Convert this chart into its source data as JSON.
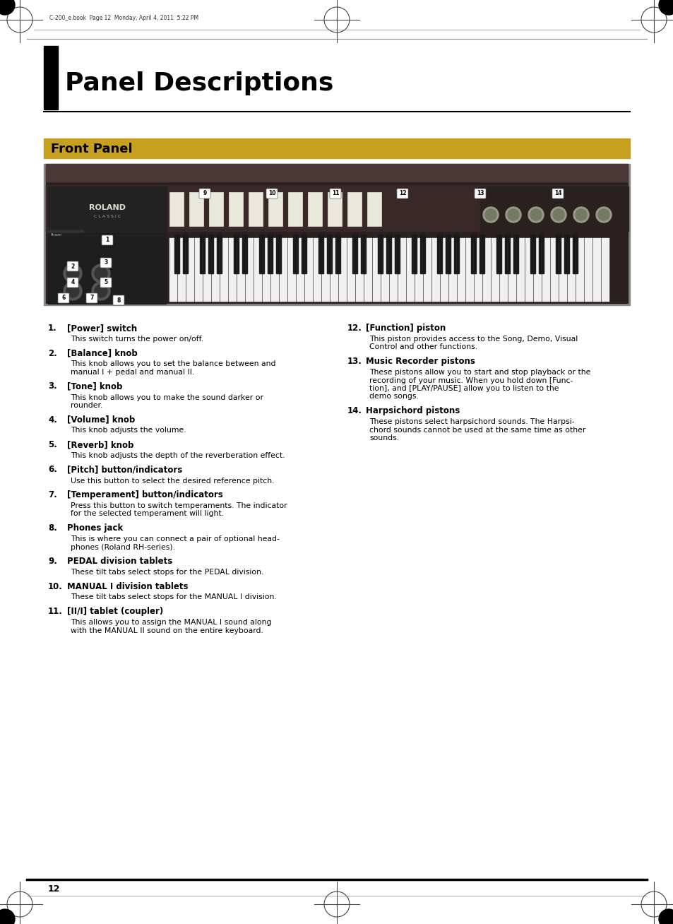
{
  "page_header_text": "C-200_e.book  Page 12  Monday, April 4, 2011  5:22 PM",
  "chapter_title": "Panel Descriptions",
  "section_title": "Front Panel",
  "section_title_bg": "#c8a020",
  "background_color": "#ffffff",
  "page_number": "12",
  "items_left": [
    {
      "num": "1.",
      "title": "[Power] switch",
      "body": "This switch turns the power on/off."
    },
    {
      "num": "2.",
      "title": "[Balance] knob",
      "body": "This knob allows you to set the balance between and\nmanual I + pedal and manual II."
    },
    {
      "num": "3.",
      "title": "[Tone] knob",
      "body": "This knob allows you to make the sound darker or\nrounder."
    },
    {
      "num": "4.",
      "title": "[Volume] knob",
      "body": "This knob adjusts the volume."
    },
    {
      "num": "5.",
      "title": "[Reverb] knob",
      "body": "This knob adjusts the depth of the reverberation effect."
    },
    {
      "num": "6.",
      "title": "[Pitch] button/indicators",
      "body": "Use this button to select the desired reference pitch."
    },
    {
      "num": "7.",
      "title": "[Temperament] button/indicators",
      "body": "Press this button to switch temperaments. The indicator\nfor the selected temperament will light."
    },
    {
      "num": "8.",
      "title": "Phones jack",
      "body": "This is where you can connect a pair of optional head-\nphones (Roland RH-series)."
    },
    {
      "num": "9.",
      "title": "PEDAL division tablets",
      "body": "These tilt tabs select stops for the PEDAL division."
    },
    {
      "num": "10.",
      "title": "MANUAL I division tablets",
      "body": "These tilt tabs select stops for the MANUAL I division."
    },
    {
      "num": "11.",
      "title": "[II/I] tablet (coupler)",
      "body": "This allows you to assign the MANUAL I sound along\nwith the MANUAL II sound on the entire keyboard."
    }
  ],
  "items_right": [
    {
      "num": "12.",
      "title": "[Function] piston",
      "body": "This piston provides access to the Song, Demo, Visual\nControl and other functions."
    },
    {
      "num": "13.",
      "title": "Music Recorder pistons",
      "body": "These pistons allow you to start and stop playback or the\nrecording of your music. When you hold down [Func-\ntion], and [PLAY/PAUSE] allow you to listen to the\ndemo songs."
    },
    {
      "num": "14.",
      "title": "Harpsichord pistons",
      "body": "These pistons select harpsichord sounds. The Harpsi-\nchord sounds cannot be used at the same time as other\nsounds."
    }
  ]
}
